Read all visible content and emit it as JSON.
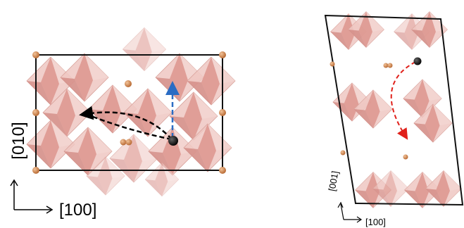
{
  "panels": [
    {
      "axis_labels": {
        "vertical": "[010]",
        "horizontal": "[100]"
      }
    },
    {
      "axis_labels": {
        "vertical": "[001]",
        "horizontal": "[100]"
      }
    }
  ]
}
